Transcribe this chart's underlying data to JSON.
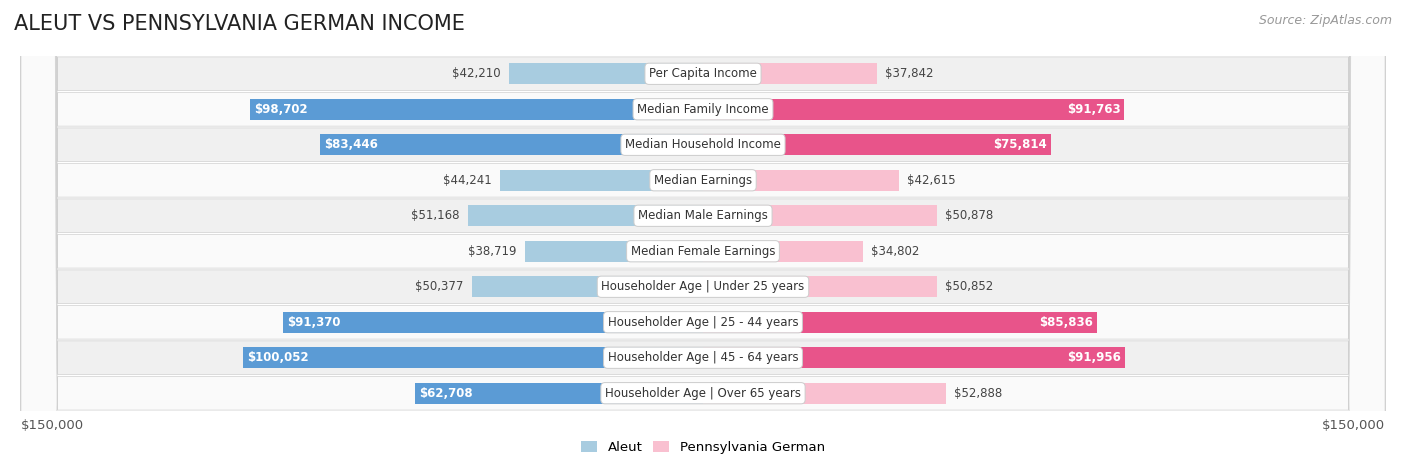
{
  "title": "ALEUT VS PENNSYLVANIA GERMAN INCOME",
  "source": "Source: ZipAtlas.com",
  "categories": [
    "Per Capita Income",
    "Median Family Income",
    "Median Household Income",
    "Median Earnings",
    "Median Male Earnings",
    "Median Female Earnings",
    "Householder Age | Under 25 years",
    "Householder Age | 25 - 44 years",
    "Householder Age | 45 - 64 years",
    "Householder Age | Over 65 years"
  ],
  "aleut_values": [
    42210,
    98702,
    83446,
    44241,
    51168,
    38719,
    50377,
    91370,
    100052,
    62708
  ],
  "penn_values": [
    37842,
    91763,
    75814,
    42615,
    50878,
    34802,
    50852,
    85836,
    91956,
    52888
  ],
  "aleut_labels": [
    "$42,210",
    "$98,702",
    "$83,446",
    "$44,241",
    "$51,168",
    "$38,719",
    "$50,377",
    "$91,370",
    "$100,052",
    "$62,708"
  ],
  "penn_labels": [
    "$37,842",
    "$91,763",
    "$75,814",
    "$42,615",
    "$50,878",
    "$34,802",
    "$50,852",
    "$85,836",
    "$91,956",
    "$52,888"
  ],
  "aleut_color_light": "#a8cce0",
  "aleut_color_dark": "#5b9bd5",
  "penn_color_light": "#f9c0d0",
  "penn_color_dark": "#e8548a",
  "aleut_inside_threshold": 60000,
  "penn_inside_threshold": 60000,
  "max_val": 150000,
  "xlabel_left": "$150,000",
  "xlabel_right": "$150,000",
  "bar_height": 0.58,
  "row_bg_even": "#f0f0f0",
  "row_bg_odd": "#fafafa",
  "title_fontsize": 15,
  "label_fontsize": 8.5,
  "category_fontsize": 8.5,
  "axis_label_fontsize": 9.5,
  "source_fontsize": 9,
  "legend_aleut": "Aleut",
  "legend_penn": "Pennsylvania German"
}
